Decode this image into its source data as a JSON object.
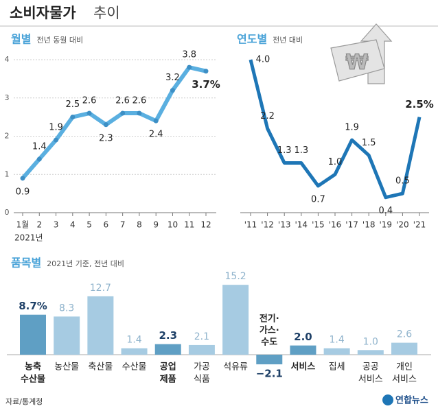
{
  "header": {
    "title_bold": "소비자물가",
    "title_light": "추이"
  },
  "chart_data": [
    {
      "type": "line",
      "title": "월별",
      "subtitle": "전년 동월 대비",
      "xlabel": "2021년",
      "categories": [
        "1월",
        "2",
        "3",
        "4",
        "5",
        "6",
        "7",
        "8",
        "9",
        "10",
        "11",
        "12"
      ],
      "values": [
        0.9,
        1.4,
        1.9,
        2.5,
        2.6,
        2.3,
        2.6,
        2.6,
        2.4,
        3.2,
        3.8,
        3.7
      ],
      "value_labels": [
        "0.9",
        "1.4",
        "1.9",
        "2.5",
        "2.6",
        "2.3",
        "2.6",
        "2.6",
        "2.4",
        "3.2",
        "3.8",
        "3.7%"
      ],
      "color": "#5aafe0",
      "ylim": [
        0,
        4
      ],
      "yticks": [
        0,
        1,
        2,
        3,
        4
      ],
      "grid": true
    },
    {
      "type": "line",
      "title": "연도별",
      "subtitle": "전년 대비",
      "categories": [
        "'11",
        "'12",
        "'13",
        "'14",
        "'15",
        "'16",
        "'17",
        "'18",
        "'19",
        "'20",
        "'21"
      ],
      "values": [
        4.0,
        2.2,
        1.3,
        1.3,
        0.7,
        1.0,
        1.9,
        1.5,
        0.4,
        0.5,
        2.5
      ],
      "value_labels": [
        "4.0",
        "2.2",
        "1.3",
        "1.3",
        "0.7",
        "1.0",
        "1.9",
        "1.5",
        "0.4",
        "0.5",
        "2.5%"
      ],
      "color": "#1e76b6",
      "ylim": [
        0,
        4
      ]
    },
    {
      "type": "bar",
      "title": "품목별",
      "subtitle": "2021년 기준, 전년 대비",
      "categories": [
        [
          "농축",
          "수산물"
        ],
        [
          "농산물"
        ],
        [
          "축산물"
        ],
        [
          "수산물"
        ],
        [
          "공업",
          "제품"
        ],
        [
          "가공",
          "식품"
        ],
        [
          "석유류"
        ],
        [
          "전기·",
          "가스·",
          "수도"
        ],
        [
          "서비스"
        ],
        [
          "집세"
        ],
        [
          "공공",
          "서비스"
        ],
        [
          "개인",
          "서비스"
        ]
      ],
      "values": [
        8.7,
        8.3,
        12.7,
        1.4,
        2.3,
        2.1,
        15.2,
        -2.1,
        2.0,
        1.4,
        1.0,
        2.6
      ],
      "value_labels": [
        "8.7%",
        "8.3",
        "12.7",
        "1.4",
        "2.3",
        "2.1",
        "15.2",
        "−2.1",
        "2.0",
        "1.4",
        "1.0",
        "2.6"
      ],
      "colors": [
        "#5f9fc4",
        "#a6cbe2",
        "#a6cbe2",
        "#a6cbe2",
        "#5f9fc4",
        "#a6cbe2",
        "#a6cbe2",
        "#5f9fc4",
        "#5f9fc4",
        "#a6cbe2",
        "#a6cbe2",
        "#a6cbe2"
      ],
      "highlight_color": "#5f9fc4",
      "ylim": [
        -3,
        16
      ]
    }
  ],
  "source": "자료/통계청",
  "logo": "연합뉴스"
}
